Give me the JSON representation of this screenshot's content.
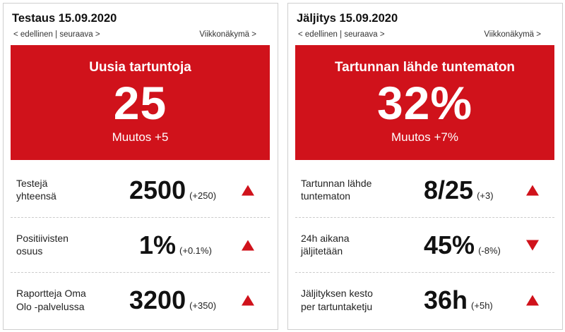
{
  "colors": {
    "accent": "#d0121b"
  },
  "cards": [
    {
      "title": "Testaus 15.09.2020",
      "nav_prev_next": "< edellinen | seuraava >",
      "nav_week": "Viikkonäkymä >",
      "hero": {
        "label": "Uusia tartuntoja",
        "value": "25",
        "change": "Muutos +5"
      },
      "rows": [
        {
          "label_line1": "Testejä",
          "label_line2": "yhteensä",
          "value": "2500",
          "change": "(+250)",
          "trend": "up"
        },
        {
          "label_line1": "Positiivisten",
          "label_line2": "osuus",
          "value": "1%",
          "change": "(+0.1%)",
          "trend": "up"
        },
        {
          "label_line1": "Raportteja Oma",
          "label_line2": "Olo -palvelussa",
          "value": "3200",
          "change": "(+350)",
          "trend": "up"
        }
      ]
    },
    {
      "title": "Jäljitys 15.09.2020",
      "nav_prev_next": "< edellinen | seuraava >",
      "nav_week": "Viikkonäkymä >",
      "hero": {
        "label": "Tartunnan lähde tuntematon",
        "value": "32%",
        "change": "Muutos +7%"
      },
      "rows": [
        {
          "label_line1": "Tartunnan lähde",
          "label_line2": "tuntematon",
          "value": "8/25",
          "change": "(+3)",
          "trend": "up"
        },
        {
          "label_line1": "24h aikana",
          "label_line2": "jäljitetään",
          "value": "45%",
          "change": "(-8%)",
          "trend": "down"
        },
        {
          "label_line1": "Jäljityksen kesto",
          "label_line2": "per tartuntaketju",
          "value": "36h",
          "change": "(+5h)",
          "trend": "up"
        }
      ]
    }
  ]
}
